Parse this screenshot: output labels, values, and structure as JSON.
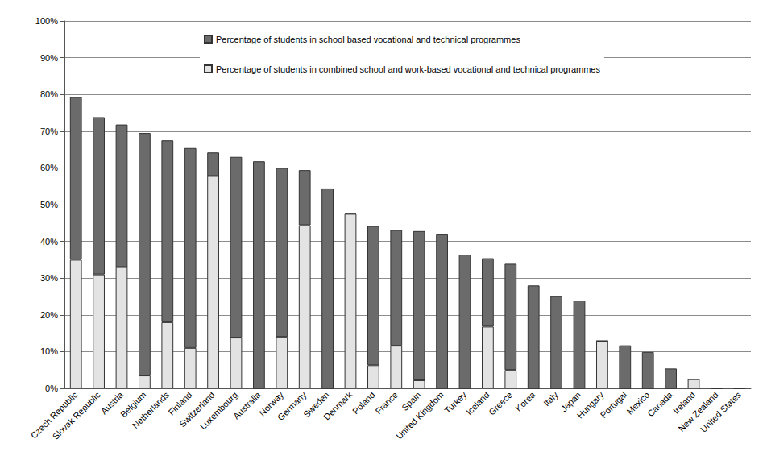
{
  "chart_data": {
    "type": "bar",
    "stacked": true,
    "grid": true,
    "legend": "top-left",
    "categories": [
      "Czech Republic",
      "Slovak Republic",
      "Austria",
      "Belgium",
      "Netherlands",
      "Finland",
      "Switzerland",
      "Luxembourg",
      "Australia",
      "Norway",
      "Germany",
      "Sweden",
      "Denmark",
      "Poland",
      "France",
      "Spain",
      "United Kingdom",
      "Turkey",
      "Iceland",
      "Greece",
      "Korea",
      "Italy",
      "Japan",
      "Hungary",
      "Portugal",
      "Mexico",
      "Canada",
      "Ireland",
      "New Zealand",
      "United States"
    ],
    "series": [
      {
        "name": "Percentage of students in combined school and work-based vocational and technical programmes",
        "color": "#e3e3e3",
        "values": [
          35,
          31,
          33,
          3.5,
          18,
          11,
          57.8,
          13.8,
          0,
          14,
          44.4,
          0,
          47.5,
          6.3,
          11.6,
          2.2,
          0,
          0,
          16.8,
          5,
          0,
          0,
          0,
          12.9,
          0,
          0,
          0,
          2.5,
          0,
          0
        ]
      },
      {
        "name": "Percentage of students in school based vocational and technical programmes",
        "color": "#6b6b6b",
        "values": [
          44.3,
          42.8,
          38.8,
          66,
          49.5,
          54.4,
          6.4,
          49.2,
          61.8,
          46,
          15,
          54.4,
          0.2,
          37.9,
          31.5,
          40.6,
          41.9,
          36.4,
          18.6,
          28.9,
          28,
          25.1,
          23.9,
          0,
          11.7,
          9.9,
          5.4,
          0,
          0,
          0
        ]
      }
    ],
    "ylim": [
      0,
      100
    ],
    "yticks": [
      {
        "value": 0,
        "label": "0%"
      },
      {
        "value": 10,
        "label": "10%"
      },
      {
        "value": 20,
        "label": "20%"
      },
      {
        "value": 30,
        "label": "30%"
      },
      {
        "value": 40,
        "label": "40%"
      },
      {
        "value": 50,
        "label": "50%"
      },
      {
        "value": 60,
        "label": "60%"
      },
      {
        "value": 70,
        "label": "70%"
      },
      {
        "value": 80,
        "label": "80%"
      },
      {
        "value": 90,
        "label": "90%"
      },
      {
        "value": 100,
        "label": "100%"
      }
    ]
  }
}
